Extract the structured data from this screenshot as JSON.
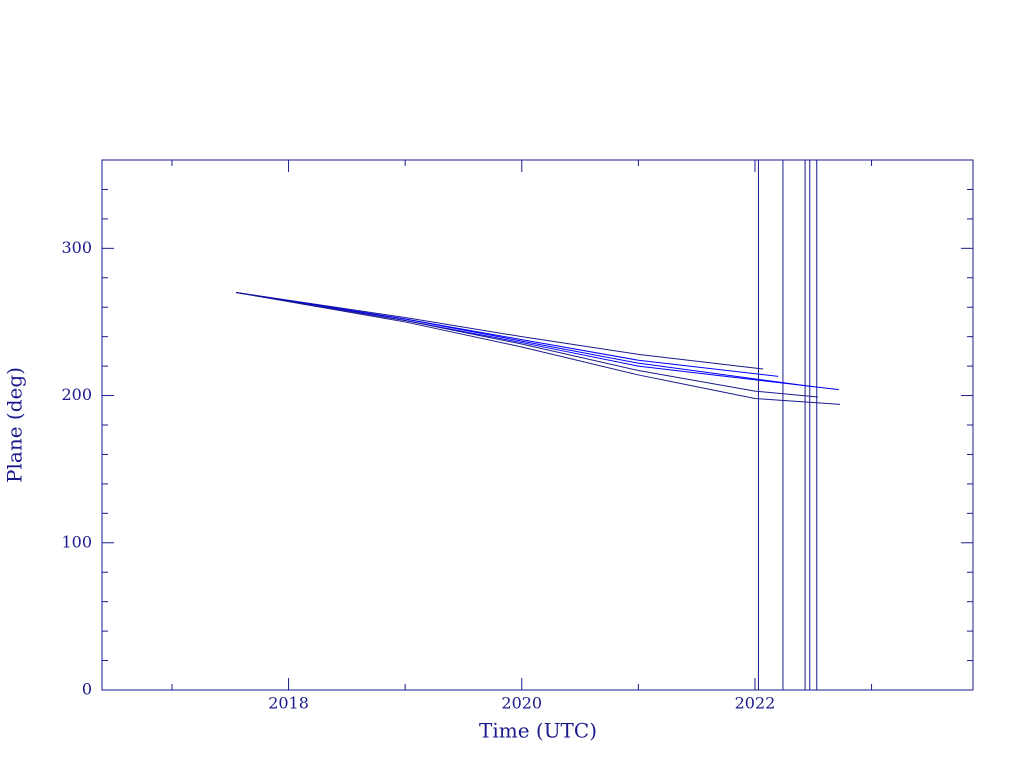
{
  "chart_data": {
    "type": "line",
    "xlabel": "Time (UTC)",
    "ylabel": "Plane (deg)",
    "xlim": [
      2016.4,
      2023.87
    ],
    "ylim": [
      0,
      360
    ],
    "xticks": [
      2018,
      2020,
      2022
    ],
    "yticks": [
      0,
      100,
      200,
      300
    ],
    "xminorticks": [
      2017,
      2019,
      2021,
      2023
    ],
    "yminorticks": [
      20,
      40,
      60,
      80,
      120,
      140,
      160,
      180,
      220,
      240,
      260,
      280,
      320,
      340
    ],
    "vlines": [
      2022.03,
      2022.24,
      2022.43,
      2022.47,
      2022.53
    ],
    "axis_color": "#1a1a8c",
    "series": [
      {
        "color": "#1a1a8c",
        "x": [
          2017.55,
          2019,
          2020,
          2021,
          2022.07
        ],
        "values": [
          270,
          253,
          240,
          228,
          218
        ]
      },
      {
        "color": "#0000ff",
        "x": [
          2017.55,
          2019,
          2020,
          2021,
          2022.2
        ],
        "values": [
          270,
          252,
          238,
          224,
          213
        ]
      },
      {
        "color": "#0000ff",
        "x": [
          2017.55,
          2019,
          2020,
          2021,
          2022.5
        ],
        "values": [
          270,
          252,
          237,
          222,
          206
        ]
      },
      {
        "color": "#0000ff",
        "x": [
          2017.55,
          2019,
          2020,
          2021,
          2022.72
        ],
        "values": [
          270,
          251,
          236,
          220,
          204
        ]
      },
      {
        "color": "#1a1a8c",
        "x": [
          2017.55,
          2019,
          2020,
          2021,
          2022,
          2022.54
        ],
        "values": [
          270,
          251,
          235,
          217,
          203,
          199
        ]
      },
      {
        "color": "#1a1a8c",
        "x": [
          2017.55,
          2019,
          2020,
          2021,
          2022,
          2022.73
        ],
        "values": [
          270,
          250,
          233,
          214,
          198,
          194
        ]
      }
    ]
  }
}
